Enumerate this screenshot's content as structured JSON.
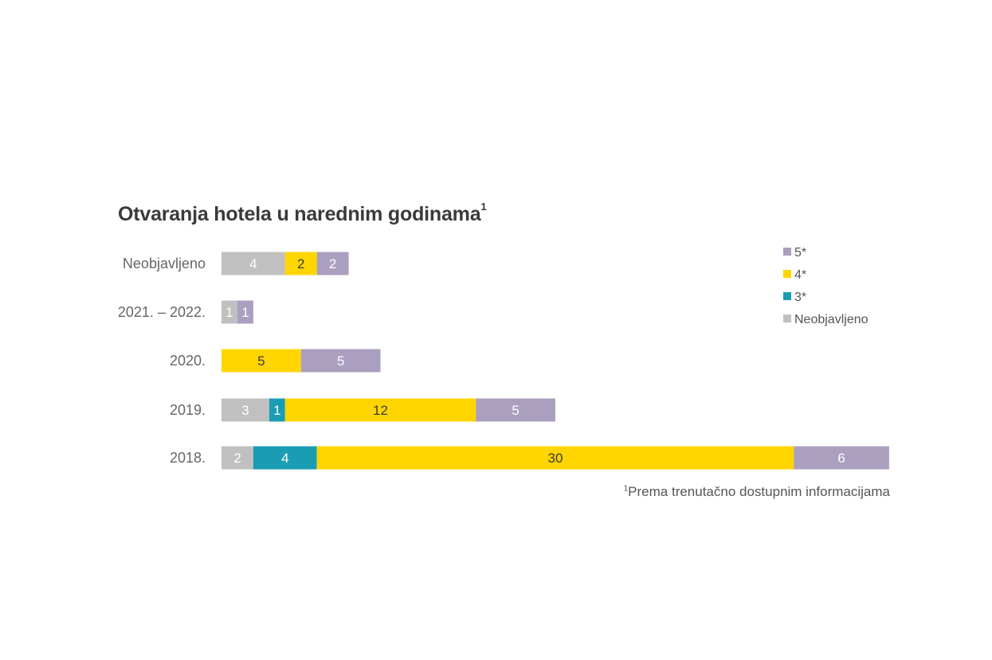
{
  "chart_data": {
    "type": "bar",
    "orientation": "horizontal",
    "stacked": true,
    "title": "Otvaranja hotela u narednim godinama",
    "title_superscript": "1",
    "footnote_marker": "1",
    "footnote": "Prema trenutačno dostupnim informacijama",
    "categories": [
      "Neobjavljeno",
      "2021. – 2022.",
      "2020.",
      "2019.",
      "2018."
    ],
    "series": [
      {
        "name": "Neobjavljeno",
        "color": "#c0c0c0",
        "label_color": "#ffffff",
        "values": [
          4,
          1,
          0,
          3,
          2
        ]
      },
      {
        "name": "3*",
        "color": "#1a9db3",
        "label_color": "#ffffff",
        "values": [
          0,
          0,
          0,
          1,
          4
        ]
      },
      {
        "name": "4*",
        "color": "#ffd500",
        "label_color": "#3a3a3a",
        "values": [
          2,
          0,
          5,
          12,
          30
        ]
      },
      {
        "name": "5*",
        "color": "#ab9fbf",
        "label_color": "#ffffff",
        "values": [
          2,
          1,
          5,
          5,
          6
        ]
      }
    ],
    "legend_order": [
      "5*",
      "4*",
      "3*",
      "Neobjavljeno"
    ],
    "legend_position": "top-right",
    "grid": false,
    "axis_visible": false,
    "data_labels": true
  }
}
